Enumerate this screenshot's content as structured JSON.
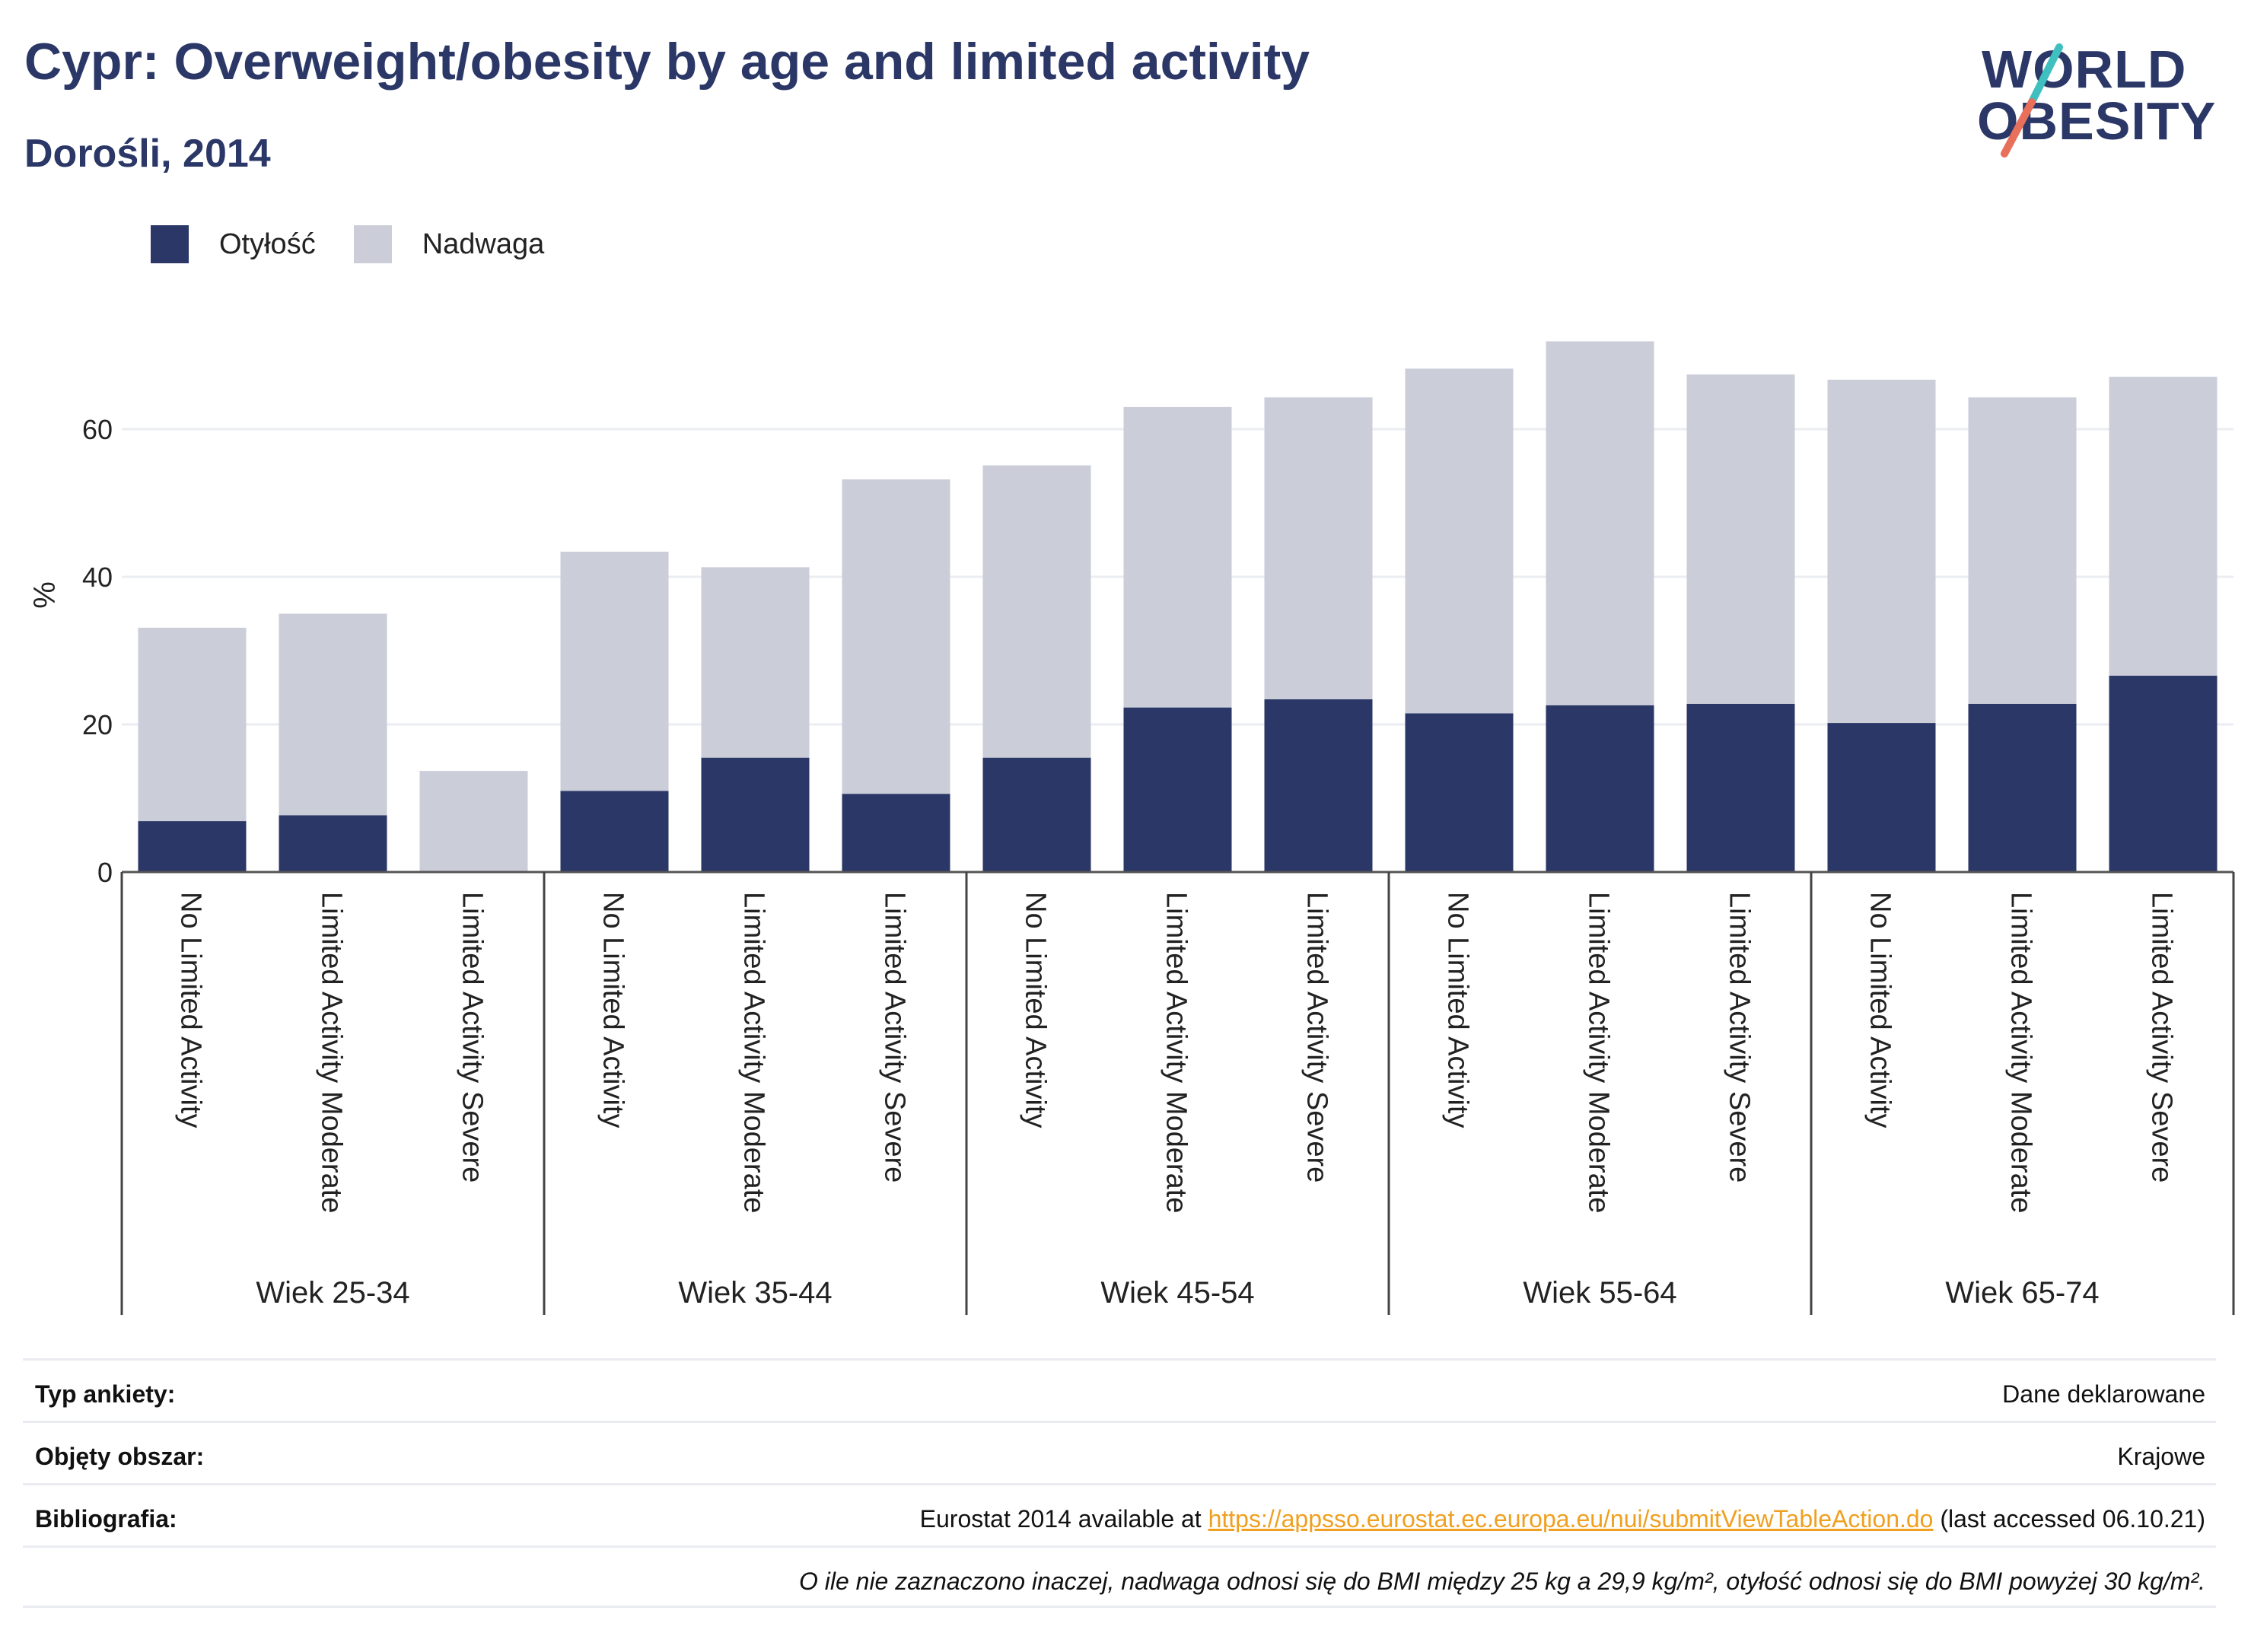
{
  "header": {
    "title": "Cypr: Overweight/obesity by age and limited activity",
    "subtitle": "Dorośli, 2014"
  },
  "logo": {
    "line1": "WORLD",
    "line2": "OBESITY"
  },
  "legend": [
    {
      "label": "Otyłość",
      "color": "#2b3766"
    },
    {
      "label": "Nadwaga",
      "color": "#cbcdd9"
    }
  ],
  "chart_data": {
    "type": "bar",
    "stacked": true,
    "ylabel": "%",
    "ylim": [
      0,
      75
    ],
    "yticks": [
      0,
      20,
      40,
      60
    ],
    "grid": true,
    "legend_position": "top-left",
    "groups": [
      {
        "label": "Wiek 25-34",
        "categories": [
          "No Limited Activity",
          "Limited Activity Moderate",
          "Limited Activity Severe"
        ]
      },
      {
        "label": "Wiek 35-44",
        "categories": [
          "No Limited Activity",
          "Limited Activity Moderate",
          "Limited Activity Severe"
        ]
      },
      {
        "label": "Wiek 45-54",
        "categories": [
          "No Limited Activity",
          "Limited Activity Moderate",
          "Limited Activity Severe"
        ]
      },
      {
        "label": "Wiek 55-64",
        "categories": [
          "No Limited Activity",
          "Limited Activity Moderate",
          "Limited Activity Severe"
        ]
      },
      {
        "label": "Wiek 65-74",
        "categories": [
          "No Limited Activity",
          "Limited Activity Moderate",
          "Limited Activity Severe"
        ]
      }
    ],
    "series": [
      {
        "name": "Otyłość",
        "color": "#2b3766",
        "values": [
          6.9,
          7.7,
          0,
          11.0,
          15.5,
          10.6,
          15.5,
          22.3,
          23.4,
          21.5,
          22.6,
          22.8,
          20.2,
          22.8,
          26.6
        ]
      },
      {
        "name": "Nadwaga",
        "color": "#cbcdd9",
        "values": [
          26.2,
          27.3,
          13.7,
          32.4,
          25.8,
          42.6,
          39.6,
          40.7,
          40.9,
          46.7,
          49.3,
          44.6,
          46.5,
          41.5,
          40.5
        ]
      }
    ]
  },
  "meta": {
    "rows": [
      {
        "key": "Typ ankiety:",
        "value": "Dane deklarowane"
      },
      {
        "key": "Objęty obszar:",
        "value": "Krajowe"
      },
      {
        "key": "Bibliografia:",
        "value_prefix": "Eurostat 2014 available at ",
        "link": "https://appsso.eurostat.ec.europa.eu/nui/submitViewTableAction.do",
        "value_suffix": " (last accessed 06.10.21)"
      },
      {
        "key": "",
        "value": "O ile nie zaznaczono inaczej, nadwaga odnosi się do BMI między 25 kg a 29,9 kg/m², otyłość odnosi się do BMI powyżej 30 kg/m²."
      }
    ]
  }
}
